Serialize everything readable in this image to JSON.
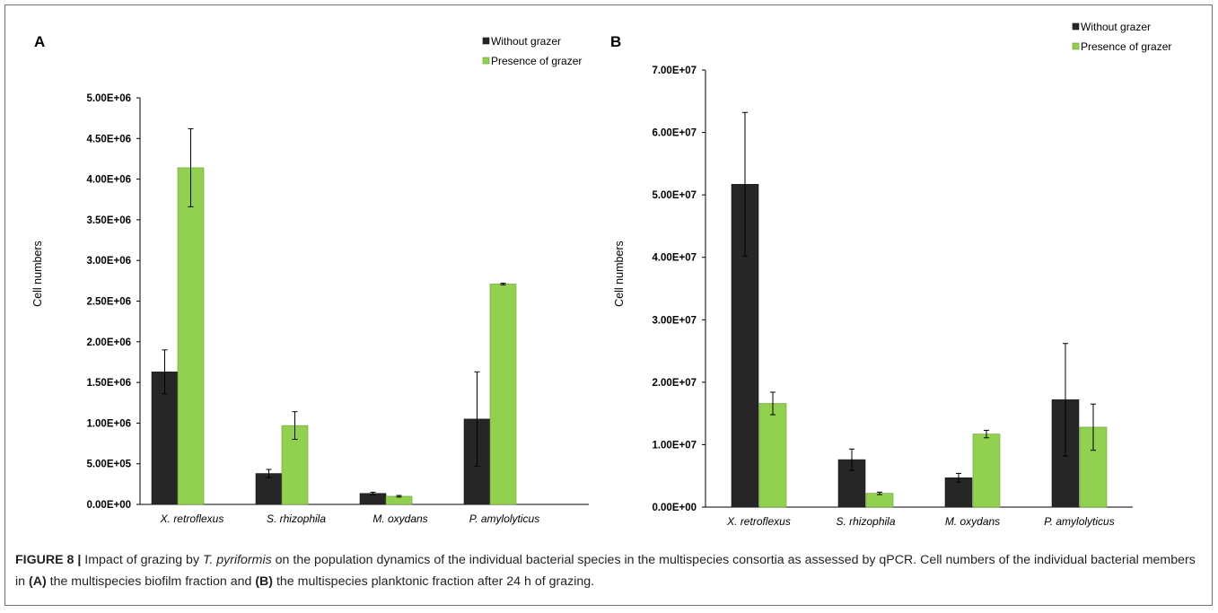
{
  "caption": {
    "figure_label": "FIGURE 8 |",
    "text_before_italic": " Impact of grazing by ",
    "italic": "T. pyriformis",
    "text_after_italic": " on the population dynamics of the individual bacterial species in the multispecies consortia as assessed by qPCR. Cell numbers of the individual bacterial members in ",
    "part_a": "(A)",
    "text_mid": " the multispecies biofilm fraction and ",
    "part_b": "(B)",
    "text_end": " the multispecies planktonic fraction after 24 h of grazing."
  },
  "chart_data": [
    {
      "panel": "A",
      "type": "bar",
      "ylabel": "Cell numbers",
      "ylim": [
        0,
        5000000
      ],
      "yticks": [
        0,
        500000,
        1000000,
        1500000,
        2000000,
        2500000,
        3000000,
        3500000,
        4000000,
        4500000,
        5000000
      ],
      "ytick_labels": [
        "0.00E+00",
        "5.00E+05",
        "1.00E+06",
        "1.50E+06",
        "2.00E+06",
        "2.50E+06",
        "3.00E+06",
        "3.50E+06",
        "4.00E+06",
        "4.50E+06",
        "5.00E+06"
      ],
      "categories": [
        "X. retroflexus",
        "S. rhizophila",
        "M. oxydans",
        "P. amylolyticus"
      ],
      "legend_position": "top-right",
      "grid": false,
      "series": [
        {
          "name": "Without grazer",
          "color": "#262626",
          "values": [
            1630000,
            380000,
            135000,
            1050000
          ],
          "errors": [
            270000,
            50000,
            15000,
            580000
          ]
        },
        {
          "name": "Presence of grazer",
          "color": "#92d050",
          "values": [
            4140000,
            970000,
            100000,
            2710000
          ],
          "errors": [
            480000,
            170000,
            10000,
            10000
          ]
        }
      ]
    },
    {
      "panel": "B",
      "type": "bar",
      "ylabel": "Cell numbers",
      "ylim": [
        0,
        70000000
      ],
      "yticks": [
        0,
        10000000,
        20000000,
        30000000,
        40000000,
        50000000,
        60000000,
        70000000
      ],
      "ytick_labels": [
        "0.00E+00",
        "1.00E+07",
        "2.00E+07",
        "3.00E+07",
        "4.00E+07",
        "5.00E+07",
        "6.00E+07",
        "7.00E+07"
      ],
      "categories": [
        "X. retroflexus",
        "S. rhizophila",
        "M. oxydans",
        "P. amylolyticus"
      ],
      "legend_position": "top-right",
      "grid": false,
      "series": [
        {
          "name": "Without grazer",
          "color": "#262626",
          "values": [
            51700000,
            7600000,
            4700000,
            17200000
          ],
          "errors": [
            11500000,
            1700000,
            700000,
            9000000
          ]
        },
        {
          "name": "Presence of grazer",
          "color": "#92d050",
          "values": [
            16600000,
            2200000,
            11700000,
            12800000
          ],
          "errors": [
            1800000,
            200000,
            600000,
            3700000
          ]
        }
      ]
    }
  ]
}
